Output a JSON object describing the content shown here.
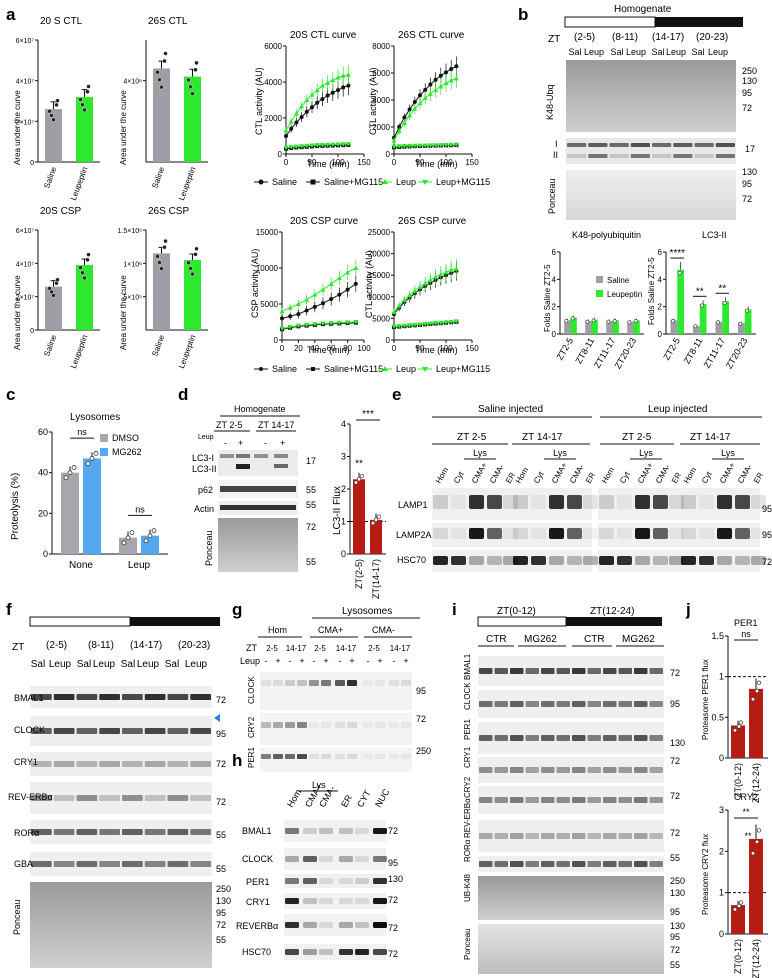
{
  "panel_letters": {
    "a": "a",
    "b": "b",
    "c": "c",
    "d": "d",
    "e": "e",
    "f": "f",
    "g": "g",
    "h": "h",
    "i": "i",
    "j": "j"
  },
  "colors": {
    "saline": "#9e9ea6",
    "leupeptin": "#2de82d",
    "dmso": "#a6a6ad",
    "mg262": "#55a8f0",
    "darkred": "#b51d14",
    "black": "#111111"
  },
  "panel_a": {
    "bar_titles": [
      "20 S CTL",
      "26S CTL",
      "20S CSP",
      "26S CSP"
    ],
    "y_label": "Area under the curve",
    "x_labels": [
      "Saline",
      "Leupeptin"
    ],
    "curve_titles": [
      "20S CTL curve",
      "26S CTL curve",
      "20S CSP curve",
      "26S CSP curve"
    ],
    "curve_ylabels": [
      "CTL activity (AU)",
      "CTL activity (AU)",
      "CSP activity (AU)",
      "CTL activity (AU)"
    ],
    "curve_xlabel": "Time (min)",
    "legend": [
      "Saline",
      "Saline+MG115",
      "Leup",
      "Leup+MG115"
    ]
  },
  "panel_b": {
    "title": "Homogenate",
    "zt": "ZT",
    "groups": [
      "(2-5)",
      "(8-11)",
      "(14-17)",
      "(20-23)"
    ],
    "lanes": [
      "Sal",
      "Leup",
      "Sal",
      "Leup",
      "Sal",
      "Leup",
      "Sal",
      "Leup"
    ],
    "blot_labels": [
      "K48-Ubq",
      "I",
      "II",
      "Ponceau"
    ],
    "mw_k48": [
      "250",
      "130",
      "95",
      "72"
    ],
    "mw_lc3": [
      "17"
    ],
    "mw_ponceau": [
      "130",
      "95",
      "72"
    ],
    "chart1_title": "K48-polyubiquitin",
    "chart2_title": "LC3-II",
    "y_label": "Folds Saline ZT2-5",
    "legend": [
      "Saline",
      "Leupeptin"
    ],
    "x_labels": [
      "ZT2-5",
      "ZT8-11",
      "ZT11-17",
      "ZT20-23"
    ],
    "x_labels2": [
      "ZT2-5",
      "ZT8-11",
      "ZT11-17",
      "ZT20-23"
    ],
    "sig": [
      "****",
      "**",
      "**"
    ]
  },
  "panel_c": {
    "title": "Lysosomes",
    "y_label": "Proteolysis (%)",
    "legend": [
      "DMSO",
      "MG262"
    ],
    "x_labels": [
      "None",
      "Leup"
    ],
    "sig": [
      "ns",
      "ns"
    ]
  },
  "panel_d": {
    "title": "Homogenate",
    "groups": [
      "ZT 2-5",
      "ZT 14-17"
    ],
    "leup": "Leup",
    "signs": [
      "-",
      "+",
      "-",
      "+"
    ],
    "blot_labels": [
      "LC3-I",
      "LC3-II",
      "p62",
      "Actin",
      "Ponceau"
    ],
    "mw": [
      "17",
      "55",
      "55",
      "72",
      "55"
    ],
    "y_label": "LC3-II Flux",
    "x_labels": [
      "ZT(2-5)",
      "ZT(14-17)"
    ],
    "sig": [
      "***",
      "**"
    ]
  },
  "panel_e": {
    "titles": [
      "Saline injected",
      "Leup injected"
    ],
    "groups": [
      "ZT 2-5",
      "ZT 14-17",
      "ZT 2-5",
      "ZT 14-17"
    ],
    "lys": "Lys",
    "lanes": [
      "Hom",
      "Cyt",
      "CMA+",
      "CMA-",
      "ER"
    ],
    "blot_labels": [
      "LAMP1",
      "LAMP2A",
      "HSC70"
    ],
    "mw": [
      "95",
      "95",
      "72"
    ]
  },
  "panel_f": {
    "zt": "ZT",
    "groups": [
      "(2-5)",
      "(8-11)",
      "(14-17)",
      "(20-23)"
    ],
    "lanes": [
      "Sal",
      "Leup",
      "Sal",
      "Leup",
      "Sal",
      "Leup",
      "Sal",
      "Leup"
    ],
    "blot_labels": [
      "BMAL1",
      "CLOCK",
      "CRY1",
      "REV-ERBα",
      "RORα",
      "GBA",
      "Ponceau"
    ],
    "mw": [
      "72",
      "95",
      "72",
      "72",
      "55",
      "55"
    ],
    "mw_ponceau": [
      "250",
      "130",
      "95",
      "72",
      "55"
    ]
  },
  "panel_g": {
    "title": "Lysosomes",
    "groups": [
      "Hom",
      "CMA+",
      "CMA-"
    ],
    "zt": "ZT",
    "leup": "Leup",
    "zt_values": [
      "2-5",
      "14-17",
      "2-5",
      "14-17",
      "2-5",
      "14-17"
    ],
    "signs": [
      "-",
      "+",
      "-",
      "+",
      "-",
      "+",
      "-",
      "+",
      "-",
      "+",
      "-",
      "+"
    ],
    "blot_labels": [
      "CLOCK",
      "CRY2",
      "PER1"
    ],
    "mw": [
      "95",
      "72",
      "250"
    ]
  },
  "panel_h": {
    "lys": "Lys",
    "lanes": [
      "Hom",
      "CMA+",
      "CMA-",
      "ER",
      "CYT",
      "NUC"
    ],
    "blot_labels": [
      "BMAL1",
      "CLOCK",
      "PER1",
      "CRY1",
      "REVERBα",
      "HSC70"
    ],
    "mw": [
      "72",
      "95",
      "130",
      "72",
      "72",
      "72"
    ]
  },
  "panel_i": {
    "groups": [
      "ZT(0-12)",
      "ZT(12-24)"
    ],
    "conds": [
      "CTR",
      "MG262",
      "CTR",
      "MG262"
    ],
    "blot_labels": [
      "BMAL1",
      "CLOCK",
      "PER1",
      "CRY1",
      "CRY2",
      "REV-ERBα",
      "RORα",
      "UB-K48",
      "Ponceau"
    ],
    "mw": [
      "72",
      "95",
      "130",
      "72",
      "72",
      "72",
      "55"
    ],
    "mw_ub": [
      "250",
      "130",
      "95"
    ],
    "mw_ponceau": [
      "130",
      "95",
      "72",
      "55"
    ]
  },
  "panel_j": {
    "titles": [
      "PER1",
      "CRY2"
    ],
    "y_labels": [
      "Proteasome PER1 flux",
      "Proteasome CRY2 flux"
    ],
    "x_labels": [
      "ZT(0-12)",
      "ZT(12-24)"
    ],
    "sig": [
      "ns",
      "**",
      "**"
    ]
  },
  "chart_data": [
    {
      "type": "bar",
      "title": "20 S CTL",
      "categories": [
        "Saline",
        "Leupeptin"
      ],
      "values": [
        26000000,
        32000000
      ],
      "ylabel": "Area under the curve",
      "ylim": [
        0,
        60000000
      ]
    },
    {
      "type": "bar",
      "title": "26S CTL",
      "categories": [
        "Saline",
        "Leupeptin"
      ],
      "values": [
        4600000,
        4200000
      ],
      "ylabel": "Area under the curve",
      "ylim": [
        0,
        6000000
      ]
    },
    {
      "type": "bar",
      "title": "20S CSP",
      "categories": [
        "Saline",
        "Leupeptin"
      ],
      "values": [
        26000000,
        39000000
      ],
      "ylabel": "Area under the curve",
      "ylim": [
        0,
        60000000
      ]
    },
    {
      "type": "bar",
      "title": "26S CSP",
      "categories": [
        "Saline",
        "Leupeptin"
      ],
      "values": [
        1150000,
        1050000
      ],
      "ylabel": "Area under the curve",
      "ylim": [
        0,
        1500000
      ]
    },
    {
      "type": "line",
      "title": "20S CTL curve",
      "x": [
        0,
        10,
        20,
        30,
        40,
        50,
        60,
        70,
        80,
        90,
        100,
        110,
        120
      ],
      "xlim": [
        0,
        150
      ],
      "ylim": [
        0,
        6000
      ],
      "series": [
        {
          "name": "Saline",
          "values": [
            1000,
            1400,
            1750,
            2050,
            2350,
            2600,
            2850,
            3050,
            3250,
            3400,
            3550,
            3700,
            3800
          ]
        },
        {
          "name": "Saline+MG115",
          "values": [
            300,
            330,
            360,
            380,
            400,
            420,
            440,
            450,
            460,
            470,
            480,
            490,
            500
          ]
        },
        {
          "name": "Leup",
          "values": [
            1300,
            1800,
            2250,
            2650,
            3000,
            3300,
            3550,
            3800,
            3950,
            4100,
            4250,
            4350,
            4400
          ]
        },
        {
          "name": "Leup+MG115",
          "values": [
            350,
            380,
            410,
            430,
            450,
            470,
            490,
            500,
            510,
            520,
            530,
            540,
            550
          ]
        }
      ]
    },
    {
      "type": "line",
      "title": "26S CTL curve",
      "x": [
        0,
        10,
        20,
        30,
        40,
        50,
        60,
        70,
        80,
        90,
        100,
        110,
        120
      ],
      "xlim": [
        0,
        150
      ],
      "ylim": [
        0,
        8000
      ],
      "series": [
        {
          "name": "Saline",
          "values": [
            1200,
            2000,
            2700,
            3300,
            3850,
            4350,
            4750,
            5150,
            5500,
            5800,
            6050,
            6300,
            6500
          ]
        },
        {
          "name": "Saline+MG115",
          "values": [
            500,
            520,
            540,
            560,
            580,
            590,
            600,
            610,
            620,
            630,
            640,
            650,
            660
          ]
        },
        {
          "name": "Leup",
          "values": [
            1000,
            1700,
            2300,
            2850,
            3350,
            3750,
            4150,
            4450,
            4750,
            5000,
            5250,
            5450,
            5600
          ]
        },
        {
          "name": "Leup+MG115",
          "values": [
            550,
            570,
            590,
            600,
            610,
            620,
            630,
            640,
            650,
            660,
            670,
            680,
            690
          ]
        }
      ]
    },
    {
      "type": "line",
      "title": "20S CSP curve",
      "x": [
        0,
        10,
        20,
        30,
        40,
        50,
        60,
        70,
        80,
        90
      ],
      "xlim": [
        0,
        100
      ],
      "ylim": [
        0,
        15000
      ],
      "series": [
        {
          "name": "Saline",
          "values": [
            3000,
            3300,
            3600,
            4100,
            4600,
            5100,
            5700,
            6300,
            7000,
            7800
          ]
        },
        {
          "name": "Saline+MG115",
          "values": [
            1500,
            1700,
            1900,
            2000,
            2100,
            2200,
            2250,
            2300,
            2350,
            2400
          ]
        },
        {
          "name": "Leup",
          "values": [
            4000,
            4500,
            5000,
            5600,
            6300,
            7000,
            7800,
            8600,
            9400,
            10000
          ]
        },
        {
          "name": "Leup+MG115",
          "values": [
            1600,
            1800,
            2000,
            2100,
            2200,
            2300,
            2350,
            2400,
            2450,
            2500
          ]
        }
      ]
    },
    {
      "type": "line",
      "title": "26S CSP curve",
      "x": [
        0,
        10,
        20,
        30,
        40,
        50,
        60,
        70,
        80,
        90,
        100,
        110,
        120
      ],
      "xlim": [
        0,
        150
      ],
      "ylim": [
        0,
        25000
      ],
      "series": [
        {
          "name": "Saline",
          "values": [
            6000,
            7500,
            8800,
            9800,
            10800,
            11700,
            12500,
            13200,
            13900,
            14500,
            15000,
            15500,
            16000
          ]
        },
        {
          "name": "Saline+MG115",
          "values": [
            3000,
            3100,
            3200,
            3300,
            3400,
            3500,
            3600,
            3700,
            3800,
            3900,
            4000,
            4100,
            4200
          ]
        },
        {
          "name": "Leup",
          "values": [
            6500,
            8000,
            9300,
            10400,
            11400,
            12300,
            13100,
            13900,
            14600,
            15200,
            15700,
            16200,
            16500
          ]
        },
        {
          "name": "Leup+MG115",
          "values": [
            3100,
            3200,
            3300,
            3400,
            3500,
            3600,
            3700,
            3800,
            3900,
            4000,
            4100,
            4200,
            4300
          ]
        }
      ]
    },
    {
      "type": "bar",
      "title": "K48-polyubiquitin",
      "categories": [
        "ZT2-5",
        "ZT8-11",
        "ZT11-17",
        "ZT20-23"
      ],
      "ylim": [
        0,
        6
      ],
      "series": [
        {
          "name": "Saline",
          "values": [
            1.0,
            0.95,
            0.95,
            0.9
          ]
        },
        {
          "name": "Leupeptin",
          "values": [
            1.2,
            1.05,
            1.0,
            1.0
          ]
        }
      ]
    },
    {
      "type": "bar",
      "title": "LC3-II",
      "categories": [
        "ZT2-5",
        "ZT8-11",
        "ZT11-17",
        "ZT20-23"
      ],
      "ylim": [
        0,
        6
      ],
      "series": [
        {
          "name": "Saline",
          "values": [
            1.0,
            0.6,
            0.9,
            0.8
          ]
        },
        {
          "name": "Leupeptin",
          "values": [
            4.7,
            2.2,
            2.4,
            1.8
          ]
        }
      ]
    },
    {
      "type": "bar",
      "title": "Lysosomes",
      "categories": [
        "None",
        "Leup"
      ],
      "ylabel": "Proteolysis (%)",
      "ylim": [
        0,
        60
      ],
      "series": [
        {
          "name": "DMSO",
          "values": [
            40,
            8
          ]
        },
        {
          "name": "MG262",
          "values": [
            47,
            9
          ]
        }
      ]
    },
    {
      "type": "bar",
      "categories": [
        "ZT(2-5)",
        "ZT(14-17)"
      ],
      "values": [
        2.3,
        1.05
      ],
      "ylabel": "LC3-II Flux",
      "ylim": [
        0,
        4
      ]
    },
    {
      "type": "bar",
      "title": "PER1",
      "categories": [
        "ZT(0-12)",
        "ZT(12-24)"
      ],
      "values": [
        0.4,
        0.85
      ],
      "ylabel": "Proteasome PER1 flux",
      "ylim": [
        0,
        1.5
      ]
    },
    {
      "type": "bar",
      "title": "CRY2",
      "categories": [
        "ZT(0-12)",
        "ZT(12-24)"
      ],
      "values": [
        0.7,
        2.3
      ],
      "ylabel": "Proteasome CRY2 flux",
      "ylim": [
        0,
        3
      ]
    }
  ]
}
